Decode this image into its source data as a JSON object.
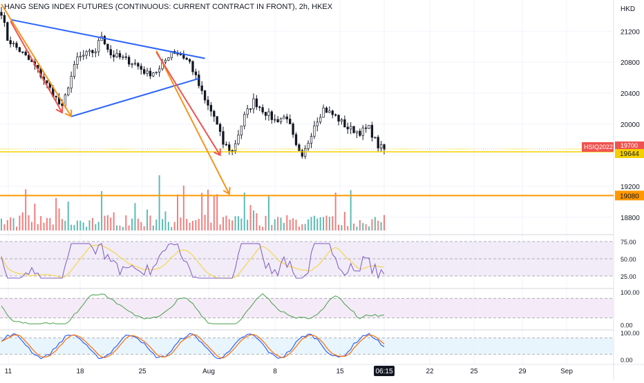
{
  "header": {
    "title": "HANG SENG INDEX FUTURES (CONTINUOUS: CURRENT CONTRACT IN FRONT), 2h, HKEX",
    "currency": "HKD"
  },
  "colors": {
    "up": "#26a69a",
    "down": "#ef5350",
    "candle": "#131722",
    "trend_blue": "#2962ff",
    "arrow_orange": "#f7931a",
    "arrow_red": "#ef5350",
    "support_orange": "#ff9800",
    "last_price_yellow": "#f5d000",
    "rsi_line": "#7e57c2",
    "rsi_ma": "#f7d54a",
    "rsi_band": "#ede7f6",
    "osc_line": "#43a047",
    "osc_band": "#f3e5f5",
    "stoch_k": "#2962ff",
    "stoch_d": "#ff6d00",
    "stoch_band": "#e3f2fd"
  },
  "chart_data": {
    "type": "candlestick",
    "symbol_label": "HSIQ2022",
    "price_axis": {
      "ticks": [
        "21200",
        "20800",
        "20400",
        "20000",
        "19600",
        "19200",
        "18800"
      ],
      "range": [
        18700,
        21550
      ]
    },
    "time_axis": {
      "ticks": [
        "11",
        "18",
        "25",
        "Aug",
        "8",
        "15",
        "06:15",
        "22",
        "25",
        "29",
        "Sep"
      ]
    },
    "price_labels": {
      "last_price": "19644",
      "hidden_price": "19700",
      "support_level": "19080"
    },
    "levels": {
      "last_price": 19644,
      "support": 19080
    },
    "close_path": [
      {
        "t": 0,
        "price": 21450
      },
      {
        "t": 2,
        "price": 21100
      },
      {
        "t": 6,
        "price": 20950
      },
      {
        "t": 11,
        "price": 20750
      },
      {
        "t": 17,
        "price": 20400
      },
      {
        "t": 20,
        "price": 20200
      },
      {
        "t": 22,
        "price": 20500
      },
      {
        "t": 25,
        "price": 20850
      },
      {
        "t": 28,
        "price": 20900
      },
      {
        "t": 31,
        "price": 20950
      },
      {
        "t": 33,
        "price": 21150
      },
      {
        "t": 36,
        "price": 20900
      },
      {
        "t": 40,
        "price": 20850
      },
      {
        "t": 44,
        "price": 20780
      },
      {
        "t": 48,
        "price": 20650
      },
      {
        "t": 52,
        "price": 20700
      },
      {
        "t": 56,
        "price": 20950
      },
      {
        "t": 59,
        "price": 20900
      },
      {
        "t": 62,
        "price": 20800
      },
      {
        "t": 64,
        "price": 20600
      },
      {
        "t": 67,
        "price": 20300
      },
      {
        "t": 70,
        "price": 20100
      },
      {
        "t": 73,
        "price": 19750
      },
      {
        "t": 76,
        "price": 19650
      },
      {
        "t": 80,
        "price": 20100
      },
      {
        "t": 83,
        "price": 20300
      },
      {
        "t": 87,
        "price": 20150
      },
      {
        "t": 90,
        "price": 20050
      },
      {
        "t": 94,
        "price": 20100
      },
      {
        "t": 97,
        "price": 19700
      },
      {
        "t": 99,
        "price": 19550
      },
      {
        "t": 103,
        "price": 20000
      },
      {
        "t": 106,
        "price": 20200
      },
      {
        "t": 110,
        "price": 20100
      },
      {
        "t": 114,
        "price": 19950
      },
      {
        "t": 118,
        "price": 19900
      },
      {
        "t": 121,
        "price": 19950
      },
      {
        "t": 124,
        "price": 19720
      },
      {
        "t": 126,
        "price": 19670
      }
    ],
    "rsi": {
      "ticks": [
        "75.00",
        "50.00",
        "25.00"
      ],
      "upper": 75,
      "mid": 50,
      "lower": 25,
      "range": [
        15,
        85
      ]
    },
    "oscillator": {
      "ticks": [
        "100.00",
        "0.00"
      ],
      "upper": 80,
      "lower": 20,
      "range": [
        -10,
        110
      ]
    },
    "stochastic": {
      "ticks": [
        "100.00",
        "0.00"
      ],
      "upper": 80,
      "lower": 20,
      "range": [
        -10,
        110
      ]
    },
    "drawings": [
      {
        "kind": "trendline",
        "color": "trend_blue",
        "from": {
          "t": 3,
          "price": 21350
        },
        "to": {
          "t": 67,
          "price": 20850
        }
      },
      {
        "kind": "trendline",
        "color": "trend_blue",
        "from": {
          "t": 23,
          "price": 20100
        },
        "to": {
          "t": 65,
          "price": 20590
        }
      },
      {
        "kind": "arrow",
        "color": "arrow_orange",
        "from": {
          "t": 0,
          "price": 21550
        },
        "to": {
          "t": 23,
          "price": 20100
        }
      },
      {
        "kind": "arrow",
        "color": "arrow_red",
        "from": {
          "t": 3,
          "price": 21330
        },
        "to": {
          "t": 20,
          "price": 20150
        }
      },
      {
        "kind": "arrow",
        "color": "arrow_orange",
        "from": {
          "t": 51,
          "price": 20950
        },
        "to": {
          "t": 75,
          "price": 19100
        }
      },
      {
        "kind": "arrow",
        "color": "arrow_red",
        "from": {
          "t": 51,
          "price": 20930
        },
        "to": {
          "t": 72,
          "price": 19600
        }
      }
    ]
  }
}
